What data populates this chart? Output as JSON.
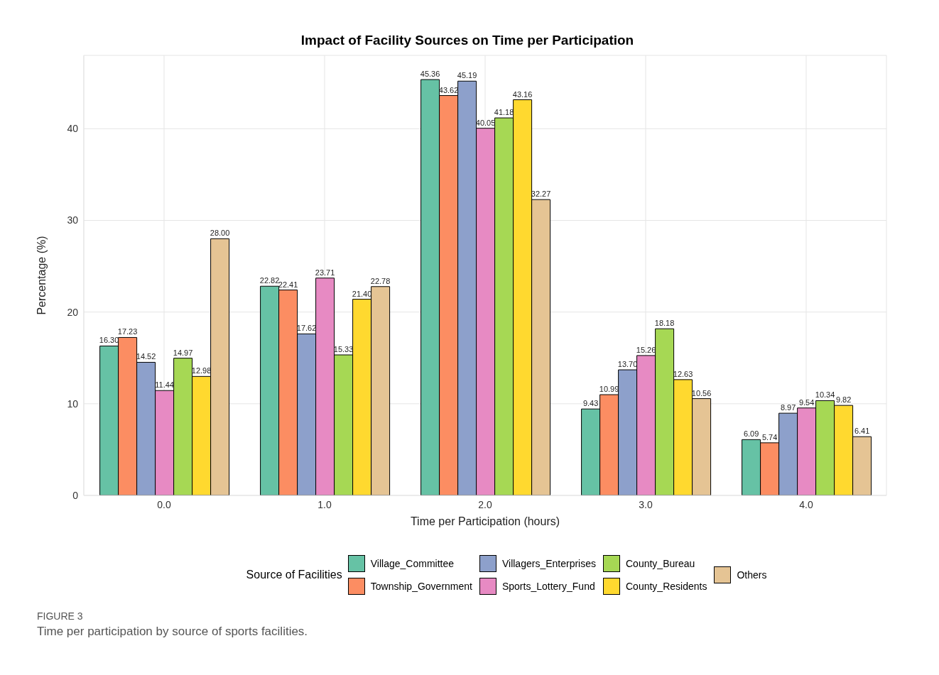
{
  "chart_data": {
    "type": "bar",
    "title": "Impact of Facility Sources on Time per Participation",
    "xlabel": "Time per Participation (hours)",
    "ylabel": "Percentage (%)",
    "legend_title": "Source of Facilities",
    "categories": [
      "0.0",
      "1.0",
      "2.0",
      "3.0",
      "4.0"
    ],
    "series": [
      {
        "name": "Village_Committee",
        "color": "#66c2a5",
        "values": [
          16.3,
          22.82,
          45.36,
          9.43,
          6.09
        ],
        "value_labels": [
          "16.30",
          "22.82",
          "45.36",
          "9.43",
          "6.09"
        ]
      },
      {
        "name": "Township_Government",
        "color": "#fc8d62",
        "values": [
          17.23,
          22.41,
          43.62,
          10.99,
          5.74
        ],
        "value_labels": [
          "17.23",
          "22.41",
          "43.62",
          "10.99",
          "5.74"
        ]
      },
      {
        "name": "Villagers_Enterprises",
        "color": "#8da0cb",
        "values": [
          14.52,
          17.62,
          45.19,
          13.7,
          8.97
        ],
        "value_labels": [
          "14.52",
          "17.62",
          "45.19",
          "13.70",
          "8.97"
        ]
      },
      {
        "name": "Sports_Lottery_Fund",
        "color": "#e78ac3",
        "values": [
          11.44,
          23.71,
          40.05,
          15.26,
          9.54
        ],
        "value_labels": [
          "11.44",
          "23.71",
          "40.05",
          "15.26",
          "9.54"
        ]
      },
      {
        "name": "County_Bureau",
        "color": "#a6d854",
        "values": [
          14.97,
          15.33,
          41.18,
          18.18,
          10.34
        ],
        "value_labels": [
          "14.97",
          "15.33",
          "41.18",
          "18.18",
          "10.34"
        ]
      },
      {
        "name": "County_Residents",
        "color": "#ffd92f",
        "values": [
          12.98,
          21.4,
          43.16,
          12.63,
          9.82
        ],
        "value_labels": [
          "12.98",
          "21.40",
          "43.16",
          "12.63",
          "9.82"
        ]
      },
      {
        "name": "Others",
        "color": "#e5c494",
        "values": [
          28.0,
          22.78,
          32.27,
          10.56,
          6.41
        ],
        "value_labels": [
          "28.00",
          "22.78",
          "32.27",
          "10.56",
          "6.41"
        ]
      }
    ],
    "ylim": [
      0,
      48
    ],
    "yticks": [
      0,
      10,
      20,
      30,
      40
    ],
    "grid": true,
    "legend": "bottom",
    "annotations": [
      "FIGURE 3",
      "Time per participation by source of sports facilities."
    ]
  }
}
